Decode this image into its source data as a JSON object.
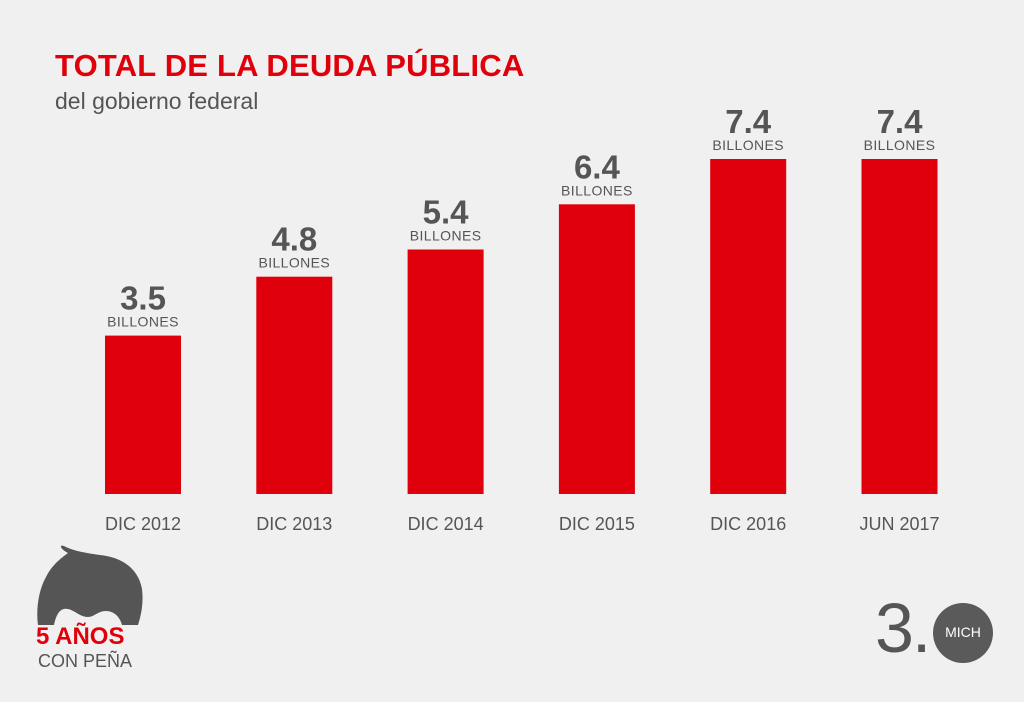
{
  "header": {
    "title": "TOTAL DE LA DEUDA PÚBLICA",
    "subtitle": "del gobierno federal"
  },
  "chart_data": {
    "type": "bar",
    "title": "TOTAL DE LA DEUDA PÚBLICA",
    "subtitle": "del gobierno federal",
    "categories": [
      "DIC 2012",
      "DIC 2013",
      "DIC 2014",
      "DIC 2015",
      "DIC 2016",
      "JUN 2017"
    ],
    "values": [
      3.5,
      4.8,
      5.4,
      6.4,
      7.4,
      7.4
    ],
    "value_labels": [
      "3.5",
      "4.8",
      "5.4",
      "6.4",
      "7.4",
      "7.4"
    ],
    "unit_label": "BILLONES",
    "xlabel": "",
    "ylabel": "",
    "ylim": [
      0,
      7.4
    ],
    "grid": false,
    "bar_color": "#e0000b"
  },
  "logo_left": {
    "line1": "5 AÑOS",
    "line2": "CON PEÑA",
    "icon": "head-icon"
  },
  "logo_right": {
    "number": "3.",
    "circle_text": "MICH"
  },
  "colors": {
    "background": "#f0f0f0",
    "accent": "#e0000b",
    "text_gray": "#555555"
  }
}
